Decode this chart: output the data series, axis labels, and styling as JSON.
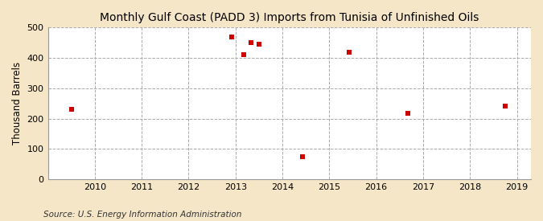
{
  "title": "Monthly Gulf Coast (PADD 3) Imports from Tunisia of Unfinished Oils",
  "ylabel": "Thousand Barrels",
  "source": "Source: U.S. Energy Information Administration",
  "figure_bg": "#f5e6c8",
  "plot_bg": "#ffffff",
  "scatter_color": "#cc0000",
  "marker": "s",
  "marker_size": 4,
  "xlim": [
    2009.0,
    2019.3
  ],
  "ylim": [
    0,
    500
  ],
  "yticks": [
    0,
    100,
    200,
    300,
    400,
    500
  ],
  "xticks": [
    2010,
    2011,
    2012,
    2013,
    2014,
    2015,
    2016,
    2017,
    2018,
    2019
  ],
  "data_x": [
    2009.5,
    2012.92,
    2013.17,
    2013.33,
    2013.5,
    2014.42,
    2015.42,
    2016.67,
    2018.75
  ],
  "data_y": [
    230,
    470,
    410,
    450,
    445,
    75,
    420,
    218,
    242
  ],
  "title_fontsize": 10,
  "label_fontsize": 8.5,
  "tick_fontsize": 8,
  "source_fontsize": 7.5,
  "grid_color": "#aaaaaa",
  "grid_style": "--",
  "grid_alpha": 1.0
}
